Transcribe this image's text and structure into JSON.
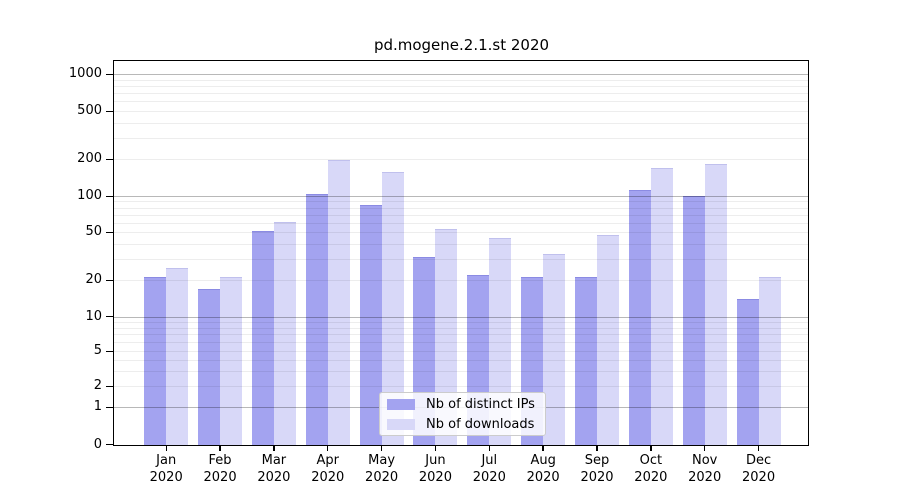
{
  "title": "pd.mogene.2.1.st 2020",
  "legend": {
    "items": [
      {
        "label": "Nb of distinct IPs",
        "color": "#a3a3f0"
      },
      {
        "label": "Nb of downloads",
        "color": "#d8d8f8"
      }
    ]
  },
  "y_axis": {
    "tick_labels": [
      "0",
      "1",
      "2",
      "5",
      "10",
      "20",
      "50",
      "100",
      "200",
      "500",
      "1000"
    ],
    "tick_values": [
      0,
      1,
      2,
      5,
      10,
      20,
      50,
      100,
      200,
      500,
      1000
    ]
  },
  "x_axis": {
    "months": [
      "Jan",
      "Feb",
      "Mar",
      "Apr",
      "May",
      "Jun",
      "Jul",
      "Aug",
      "Sep",
      "Oct",
      "Nov",
      "Dec"
    ],
    "year": "2020"
  },
  "chart_data": {
    "type": "bar",
    "title": "pd.mogene.2.1.st 2020",
    "categories": [
      "Jan 2020",
      "Feb 2020",
      "Mar 2020",
      "Apr 2020",
      "May 2020",
      "Jun 2020",
      "Jul 2020",
      "Aug 2020",
      "Sep 2020",
      "Oct 2020",
      "Nov 2020",
      "Dec 2020"
    ],
    "series": [
      {
        "name": "Nb of distinct IPs",
        "color": "#a3a3f0",
        "values": [
          21,
          17,
          51,
          103,
          84,
          31,
          22,
          21,
          21,
          112,
          100,
          14
        ]
      },
      {
        "name": "Nb of downloads",
        "color": "#d8d8f8",
        "values": [
          25,
          21,
          61,
          198,
          158,
          53,
          45,
          33,
          47,
          170,
          182,
          21
        ]
      }
    ],
    "y_axis_scale": "symlog",
    "y_ticks": [
      0,
      1,
      2,
      5,
      10,
      20,
      50,
      100,
      200,
      500,
      1000
    ],
    "ylim": [
      0,
      1400
    ],
    "grid": "horizontal major at 1,10,100,1000 and faint log minors",
    "legend_position": "lower center"
  }
}
